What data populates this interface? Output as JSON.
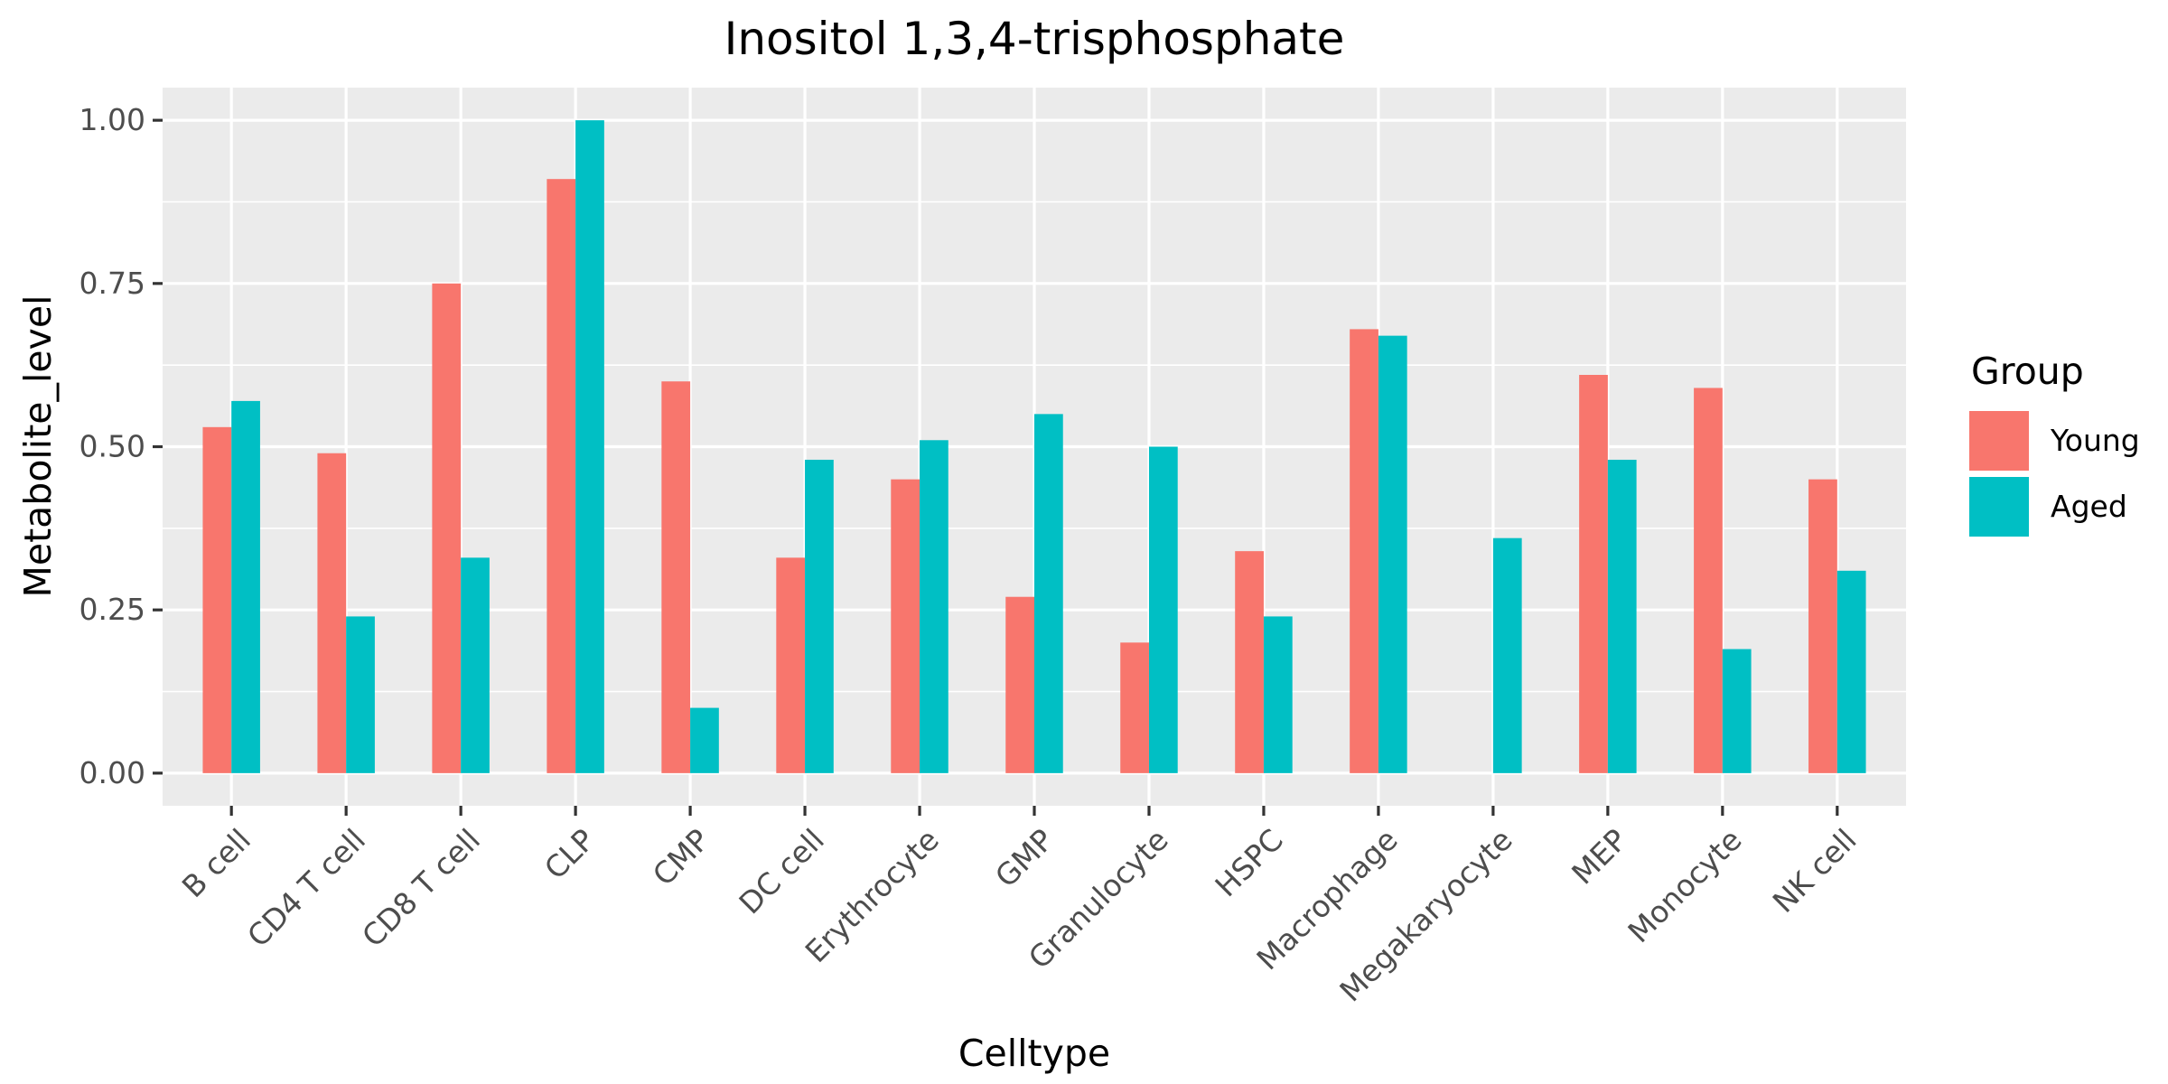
{
  "chart_data": {
    "type": "bar",
    "title": "Inositol 1,3,4-trisphosphate",
    "xlabel": "Celltype",
    "ylabel": "Metabolite_level",
    "ylim": [
      -0.05,
      1.05
    ],
    "yticks": [
      0.0,
      0.25,
      0.5,
      0.75,
      1.0
    ],
    "ytick_labels": [
      "0.00",
      "0.25",
      "0.50",
      "0.75",
      "1.00"
    ],
    "grid": true,
    "legend": {
      "title": "Group",
      "position": "right"
    },
    "categories": [
      "B cell",
      "CD4 T cell",
      "CD8 T cell",
      "CLP",
      "CMP",
      "DC cell",
      "Erythrocyte",
      "GMP",
      "Granulocyte",
      "HSPC",
      "Macrophage",
      "Megakaryocyte",
      "MEP",
      "Monocyte",
      "NK cell"
    ],
    "series": [
      {
        "name": "Young",
        "color": "#F8766D",
        "values": [
          0.53,
          0.49,
          0.75,
          0.91,
          0.6,
          0.33,
          0.45,
          0.27,
          0.2,
          0.34,
          0.68,
          0.0,
          0.61,
          0.59,
          0.45
        ]
      },
      {
        "name": "Aged",
        "color": "#00BFC4",
        "values": [
          0.57,
          0.24,
          0.33,
          1.0,
          0.1,
          0.48,
          0.51,
          0.55,
          0.5,
          0.24,
          0.67,
          0.36,
          0.48,
          0.19,
          0.31
        ]
      }
    ]
  }
}
